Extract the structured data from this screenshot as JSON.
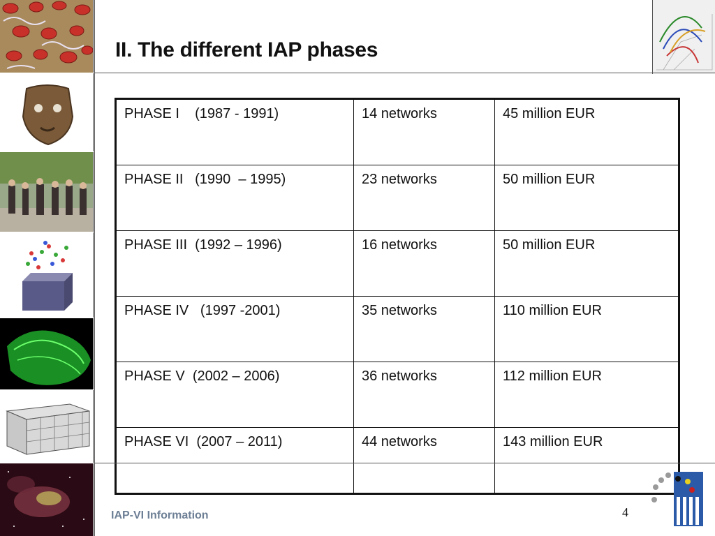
{
  "slide": {
    "title": "II. The different IAP phases",
    "footer": "IAP-VI Information",
    "page_number": "4"
  },
  "table": {
    "rows": [
      {
        "phase": "PHASE I    (1987 - 1991)",
        "networks": "14 networks",
        "budget": "45 million EUR"
      },
      {
        "phase": "PHASE II   (1990  – 1995)",
        "networks": "23 networks",
        "budget": "50 million EUR"
      },
      {
        "phase": "PHASE III  (1992 – 1996)",
        "networks": "16 networks",
        "budget": "50 million EUR"
      },
      {
        "phase": "PHASE IV   (1997 -2001)",
        "networks": "35 networks",
        "budget": "110 million EUR"
      },
      {
        "phase": "PHASE V  (2002 – 2006)",
        "networks": "36 networks",
        "budget": "112 million EUR"
      },
      {
        "phase": "PHASE VI  (2007 – 2011)",
        "networks": "44 networks",
        "budget": "143 million EUR"
      }
    ]
  },
  "images": [
    "red-blood-cells-image",
    "ancient-mask-image",
    "crowd-street-image",
    "molecular-lattice-image",
    "green-3d-scan-image",
    "mesh-block-image",
    "nebula-image",
    "trajectory-graph-image"
  ]
}
